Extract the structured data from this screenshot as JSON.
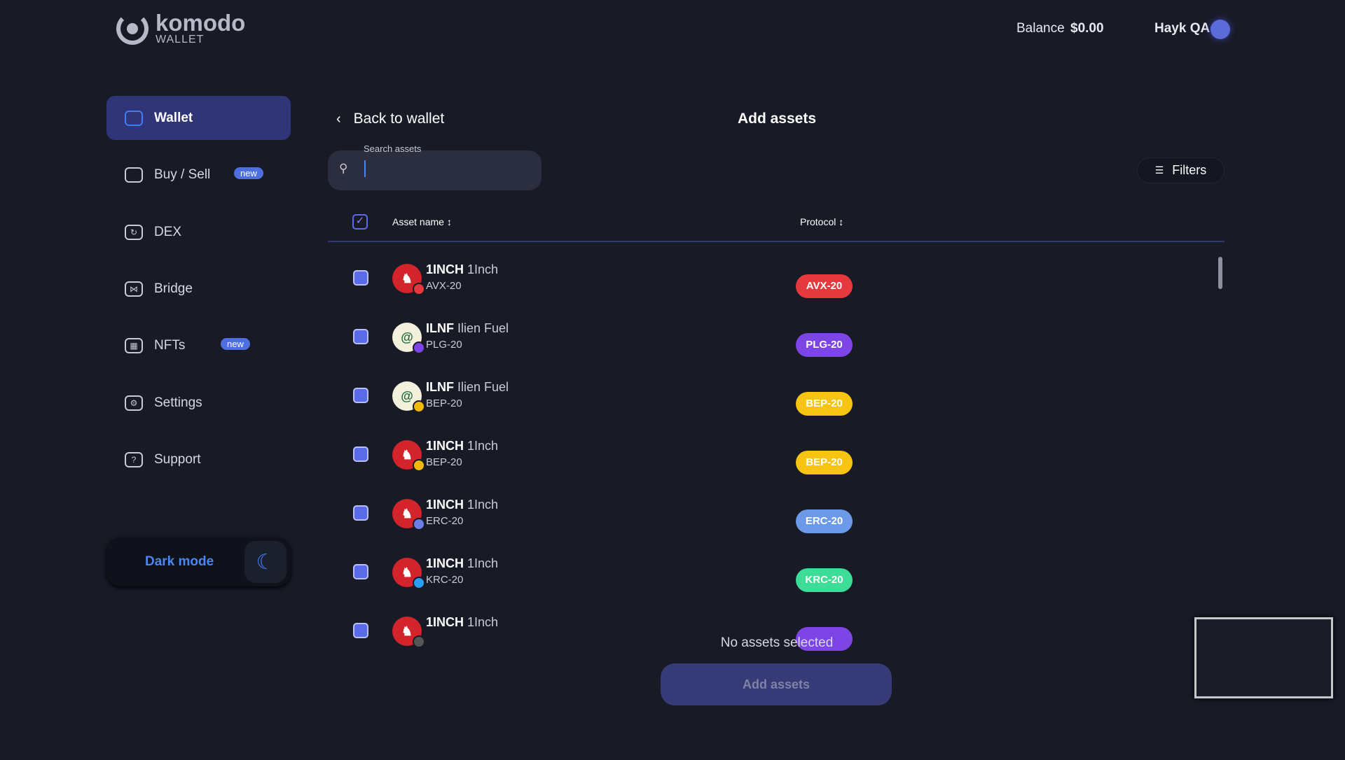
{
  "logo": {
    "brand": "komodo",
    "sub": "WALLET"
  },
  "header": {
    "balance_label": "Balance",
    "balance_value": "$0.00",
    "user_name": "Hayk QA"
  },
  "sidebar": {
    "items": [
      {
        "label": "Wallet",
        "icon": "wallet-icon",
        "active": true
      },
      {
        "label": "Buy / Sell",
        "icon": "card-icon",
        "badge": "new"
      },
      {
        "label": "DEX",
        "icon": "swap-icon"
      },
      {
        "label": "Bridge",
        "icon": "bridge-icon"
      },
      {
        "label": "NFTs",
        "icon": "grid-icon",
        "badge": "new"
      },
      {
        "label": "Settings",
        "icon": "gear-icon"
      },
      {
        "label": "Support",
        "icon": "help-icon"
      }
    ],
    "dark_mode_label": "Dark mode"
  },
  "main": {
    "back_label": "Back to wallet",
    "title": "Add assets",
    "search": {
      "label": "Search assets",
      "value": ""
    },
    "filters_label": "Filters",
    "columns": {
      "asset": "Asset name",
      "protocol": "Protocol"
    },
    "rows": [
      {
        "ticker": "1INCH",
        "name": "1Inch",
        "protocol": "AVX-20",
        "coin": "1inch",
        "color": "#e5393d"
      },
      {
        "ticker": "ILNF",
        "name": "Ilien Fuel",
        "protocol": "PLG-20",
        "coin": "ilnf",
        "color": "#7e45e6"
      },
      {
        "ticker": "ILNF",
        "name": "Ilien Fuel",
        "protocol": "BEP-20",
        "coin": "ilnf",
        "color": "#f7c412"
      },
      {
        "ticker": "1INCH",
        "name": "1Inch",
        "protocol": "BEP-20",
        "coin": "1inch",
        "color": "#f7c412"
      },
      {
        "ticker": "1INCH",
        "name": "1Inch",
        "protocol": "ERC-20",
        "coin": "1inch",
        "color": "#6c9ae8"
      },
      {
        "ticker": "1INCH",
        "name": "1Inch",
        "protocol": "KRC-20",
        "coin": "1inch",
        "color": "#3ddc97"
      },
      {
        "ticker": "1INCH",
        "name": "1Inch",
        "protocol": "",
        "coin": "1inch",
        "color": "#7e45e6"
      }
    ],
    "status": "No assets selected",
    "add_button": "Add assets"
  }
}
